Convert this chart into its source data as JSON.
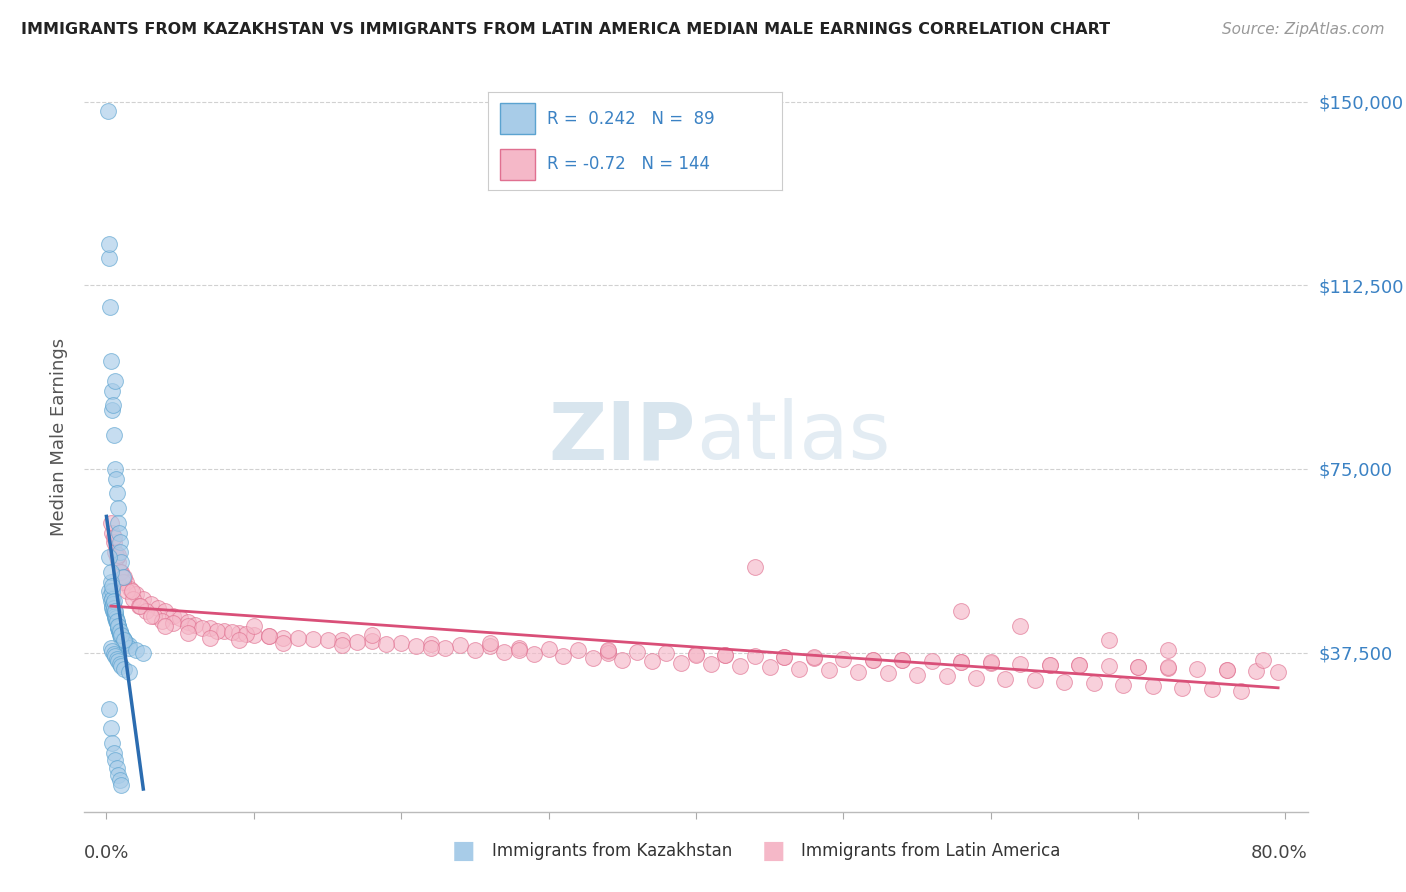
{
  "title": "IMMIGRANTS FROM KAZAKHSTAN VS IMMIGRANTS FROM LATIN AMERICA MEDIAN MALE EARNINGS CORRELATION CHART",
  "source": "Source: ZipAtlas.com",
  "ylabel": "Median Male Earnings",
  "yticks": [
    37500,
    75000,
    112500,
    150000
  ],
  "ytick_labels": [
    "$37,500",
    "$75,000",
    "$112,500",
    "$150,000"
  ],
  "xmin": 0.0,
  "xmax": 80.0,
  "ymin": 5000,
  "ymax": 158000,
  "blue_R": 0.242,
  "blue_N": 89,
  "pink_R": -0.72,
  "pink_N": 144,
  "blue_color": "#a8cce8",
  "blue_edge_color": "#5ba3d0",
  "pink_color": "#f5b8c8",
  "pink_edge_color": "#e07090",
  "blue_line_color": "#2b6cb0",
  "pink_line_color": "#d94f78",
  "legend_bg": "#ffffff",
  "legend_border": "#cccccc",
  "watermark_color": "#c8dae8",
  "legend_label_blue": "Immigrants from Kazakhstan",
  "legend_label_pink": "Immigrants from Latin America",
  "background_color": "#ffffff",
  "grid_color": "#cccccc",
  "title_color": "#222222",
  "axis_label_color": "#555555",
  "ytick_color": "#3b82c4",
  "xtick_color": "#444444",
  "blue_scatter_x": [
    0.1,
    0.15,
    0.2,
    0.25,
    0.3,
    0.35,
    0.4,
    0.45,
    0.5,
    0.55,
    0.6,
    0.65,
    0.7,
    0.75,
    0.8,
    0.85,
    0.9,
    0.95,
    1.0,
    1.1,
    0.2,
    0.25,
    0.3,
    0.35,
    0.4,
    0.45,
    0.5,
    0.55,
    0.6,
    0.65,
    0.7,
    0.75,
    0.8,
    0.85,
    0.9,
    1.0,
    1.1,
    1.2,
    1.3,
    1.5,
    0.3,
    0.35,
    0.4,
    0.45,
    0.5,
    0.55,
    0.6,
    0.65,
    0.7,
    0.75,
    0.8,
    0.85,
    0.9,
    0.95,
    1.0,
    1.1,
    1.2,
    1.5,
    2.0,
    2.5,
    0.2,
    0.3,
    0.4,
    0.5,
    0.6,
    0.7,
    0.8,
    0.9,
    1.0,
    1.2,
    0.3,
    0.4,
    0.5,
    0.6,
    0.7,
    0.8,
    0.9,
    1.0,
    1.2,
    1.5,
    0.2,
    0.3,
    0.4,
    0.5,
    0.6,
    0.7,
    0.8,
    0.9,
    1.0
  ],
  "blue_scatter_y": [
    148000,
    118000,
    121000,
    108000,
    97000,
    91000,
    87000,
    88000,
    82000,
    93000,
    75000,
    73000,
    70000,
    67000,
    64000,
    62000,
    60000,
    58000,
    56000,
    53000,
    50000,
    49000,
    48000,
    47000,
    46500,
    46000,
    45500,
    45000,
    44500,
    44000,
    43500,
    43000,
    42500,
    42000,
    41500,
    41000,
    40500,
    40000,
    39500,
    39000,
    52000,
    50000,
    48500,
    47500,
    46500,
    45500,
    45000,
    44500,
    43800,
    43000,
    42500,
    42000,
    41500,
    41000,
    40500,
    40000,
    39500,
    38500,
    38000,
    37500,
    57000,
    54000,
    51000,
    48000,
    46000,
    44000,
    43000,
    42000,
    41000,
    40000,
    38500,
    37800,
    37200,
    36800,
    36200,
    35800,
    35200,
    34800,
    34200,
    33500,
    26000,
    22000,
    19000,
    17000,
    15500,
    14000,
    12500,
    11500,
    10500
  ],
  "pink_scatter_x": [
    0.4,
    0.6,
    0.8,
    1.0,
    1.3,
    1.6,
    2.0,
    2.5,
    3.0,
    3.5,
    4.0,
    4.5,
    5.0,
    5.5,
    6.0,
    7.0,
    8.0,
    9.0,
    10.0,
    11.0,
    12.0,
    14.0,
    16.0,
    18.0,
    20.0,
    22.0,
    24.0,
    26.0,
    28.0,
    30.0,
    32.0,
    34.0,
    36.0,
    38.0,
    40.0,
    42.0,
    44.0,
    46.0,
    48.0,
    50.0,
    52.0,
    54.0,
    56.0,
    58.0,
    60.0,
    62.0,
    64.0,
    66.0,
    68.0,
    70.0,
    72.0,
    74.0,
    76.0,
    78.0,
    79.5,
    0.5,
    0.7,
    0.9,
    1.1,
    1.4,
    1.8,
    2.2,
    2.7,
    3.2,
    3.8,
    4.5,
    5.5,
    6.5,
    7.5,
    8.5,
    9.5,
    11.0,
    13.0,
    15.0,
    17.0,
    19.0,
    21.0,
    23.0,
    25.0,
    27.0,
    29.0,
    31.0,
    33.0,
    35.0,
    37.0,
    39.0,
    41.0,
    43.0,
    45.0,
    47.0,
    49.0,
    51.0,
    53.0,
    55.0,
    57.0,
    59.0,
    61.0,
    63.0,
    65.0,
    67.0,
    69.0,
    71.0,
    73.0,
    75.0,
    77.0,
    0.3,
    0.5,
    0.8,
    1.2,
    1.7,
    2.3,
    3.0,
    4.0,
    5.5,
    7.0,
    9.0,
    12.0,
    16.0,
    22.0,
    28.0,
    34.0,
    40.0,
    46.0,
    52.0,
    58.0,
    64.0,
    70.0,
    76.0,
    44.0,
    58.0,
    62.0,
    68.0,
    72.0,
    78.5,
    10.0,
    18.0,
    26.0,
    34.0,
    42.0,
    48.0,
    54.0,
    60.0,
    66.0,
    72.0
  ],
  "pink_scatter_y": [
    62000,
    58000,
    56000,
    54000,
    52000,
    50500,
    49500,
    48500,
    47500,
    46500,
    46000,
    45000,
    44500,
    43800,
    43200,
    42500,
    42000,
    41500,
    41000,
    40800,
    40500,
    40200,
    40000,
    39800,
    39500,
    39200,
    39000,
    38800,
    38500,
    38200,
    38000,
    37800,
    37600,
    37400,
    37200,
    37000,
    36800,
    36600,
    36400,
    36200,
    36000,
    35900,
    35700,
    35500,
    35400,
    35200,
    35000,
    34900,
    34700,
    34500,
    34300,
    34100,
    33900,
    33700,
    33500,
    60000,
    57000,
    54000,
    52000,
    50000,
    48500,
    47000,
    46000,
    45000,
    44000,
    43500,
    43000,
    42500,
    42000,
    41600,
    41200,
    40800,
    40400,
    40000,
    39600,
    39200,
    38800,
    38400,
    38000,
    37600,
    37200,
    36800,
    36400,
    36000,
    35700,
    35400,
    35100,
    34800,
    34500,
    34200,
    33900,
    33600,
    33300,
    33000,
    32700,
    32400,
    32100,
    31800,
    31500,
    31200,
    30900,
    30600,
    30300,
    30000,
    29700,
    64000,
    61000,
    57500,
    53000,
    50000,
    47000,
    45000,
    43000,
    41500,
    40500,
    40000,
    39500,
    39000,
    38500,
    38000,
    37500,
    37000,
    36500,
    36000,
    35500,
    35000,
    34500,
    34000,
    55000,
    46000,
    43000,
    40000,
    38000,
    36000,
    43000,
    41000,
    39500,
    38000,
    37000,
    36500,
    36000,
    35500,
    35000,
    34500
  ]
}
